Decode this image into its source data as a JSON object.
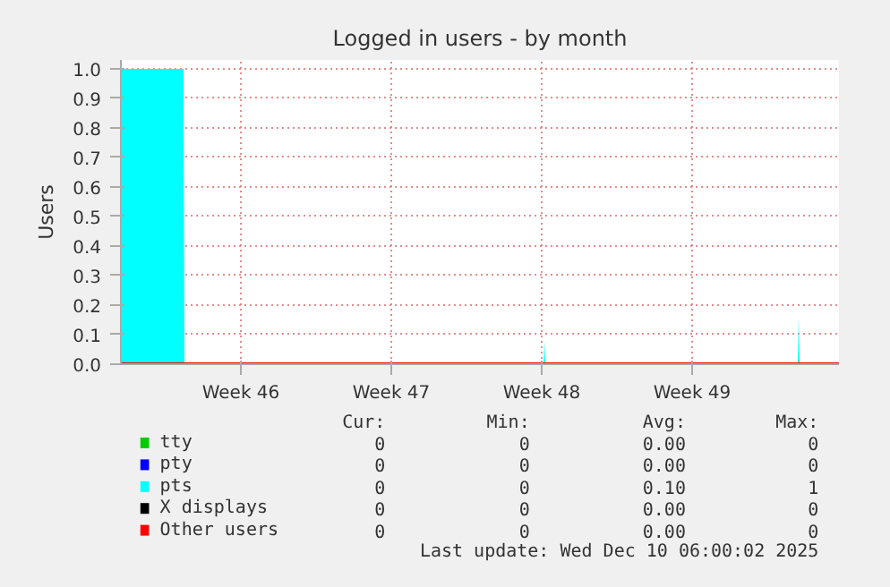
{
  "chart_data": {
    "type": "line",
    "title": "Logged in users - by month",
    "ylabel": "Users",
    "xlim": [
      "2025-11-06T20:00",
      "2025-12-10T06:00"
    ],
    "xticks": [
      {
        "value": "2025-11-12T10:00",
        "label": "Week 46"
      },
      {
        "value": "2025-11-19T10:00",
        "label": "Week 47"
      },
      {
        "value": "2025-11-26T10:00",
        "label": "Week 48"
      },
      {
        "value": "2025-12-03T10:00",
        "label": "Week 49"
      }
    ],
    "ylim": [
      0,
      1.03
    ],
    "yticks": [
      {
        "value": 0,
        "label": "0.0"
      },
      {
        "value": 0.1,
        "label": "0.1"
      },
      {
        "value": 0.2,
        "label": "0.2"
      },
      {
        "value": 0.3,
        "label": "0.3"
      },
      {
        "value": 0.4,
        "label": "0.4"
      },
      {
        "value": 0.5,
        "label": "0.5"
      },
      {
        "value": 0.6,
        "label": "0.6"
      },
      {
        "value": 0.7,
        "label": "0.7"
      },
      {
        "value": 0.8,
        "label": "0.8"
      },
      {
        "value": 0.9,
        "label": "0.9"
      },
      {
        "value": 1,
        "label": "1.0"
      }
    ],
    "grid": true,
    "legend": "bottom",
    "series": [
      {
        "name": "tty",
        "color": "#00cc00"
      },
      {
        "name": "pty",
        "color": "#0000ff"
      },
      {
        "name": "pts",
        "color": "#00ffff",
        "type": "area",
        "x": [
          "2025-11-06T20:00",
          "2025-11-09T18:00",
          "2025-11-09T19:00",
          "2025-11-26T12:00",
          "2025-11-26T13:00",
          "2025-11-26T14:00",
          "2025-12-08T08:00",
          "2025-12-08T09:00",
          "2025-12-08T10:00",
          "2025-12-10T06:00"
        ],
        "values": [
          1,
          1,
          0,
          0,
          0.08,
          0,
          0,
          0.16,
          0,
          0
        ]
      },
      {
        "name": "X displays",
        "color": "#000000"
      },
      {
        "name": "Other users",
        "color": "#ff0000",
        "x": [
          "2025-11-06T20:00",
          "2025-12-10T06:00"
        ],
        "values": [
          0,
          0
        ]
      }
    ],
    "annotations": [
      "Cur:",
      "Min:",
      "Avg:",
      "Max:",
      "0",
      "0",
      "0.00",
      "0",
      "0",
      "0",
      "0.00",
      "0",
      "0",
      "0",
      "0.10",
      "1",
      "0",
      "0",
      "0.00",
      "0",
      "0",
      "0",
      "0.00",
      "0",
      "Last update: Wed Dec 10 06:00:02 2025"
    ]
  }
}
